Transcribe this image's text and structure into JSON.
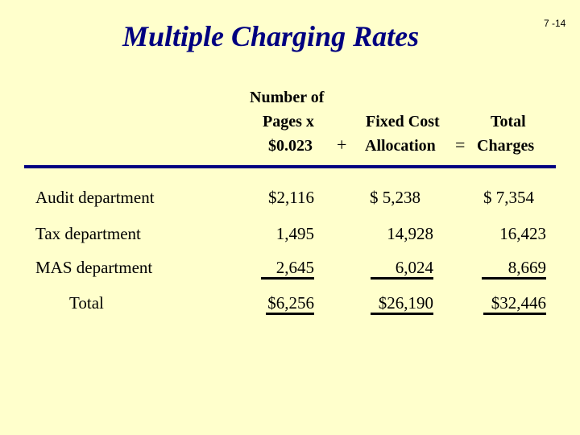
{
  "slide_number": "7 -14",
  "title": "Multiple Charging Rates",
  "headers": {
    "col1": [
      "Number of",
      "Pages x",
      "$0.023"
    ],
    "plus": "+",
    "col2": [
      "Fixed Cost",
      "Allocation"
    ],
    "equals": "=",
    "col3": [
      "Total",
      "Charges"
    ]
  },
  "rows": [
    {
      "label": "Audit department",
      "pages": "$2,116",
      "fixed": "$  5,238",
      "total": "$  7,354"
    },
    {
      "label": "Tax department",
      "pages": "1,495",
      "fixed": "14,928",
      "total": "16,423"
    },
    {
      "label": "MAS department",
      "pages": "2,645",
      "fixed": "6,024",
      "total": "8,669"
    },
    {
      "label": "Total",
      "pages": "$6,256",
      "fixed": "$26,190",
      "total": "$32,446"
    }
  ]
}
